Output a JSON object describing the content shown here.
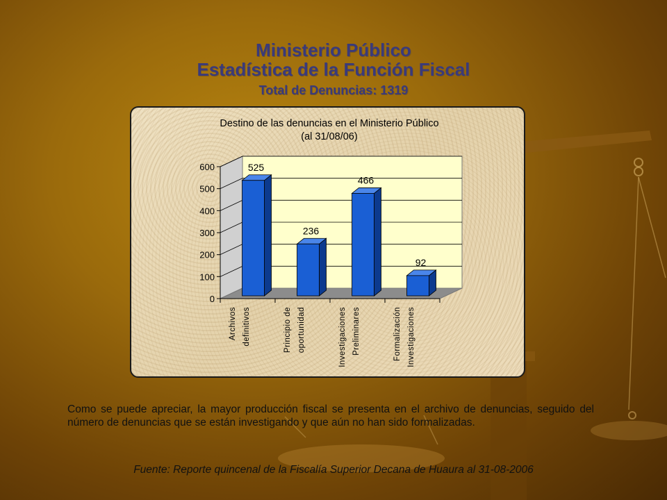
{
  "header": {
    "title_line1": "Ministerio Público",
    "title_line2": "Estadística de la Función Fiscal",
    "subtitle": "Total de Denuncias: 1319"
  },
  "chart_data": {
    "type": "bar",
    "title": "Destino de las denuncias en el Ministerio Público",
    "subtitle": "(al 31/08/06)",
    "categories": [
      [
        "Archivos",
        "definitivos"
      ],
      [
        "Principio de",
        "oportunidad"
      ],
      [
        "Investigaciones",
        "Preliminares"
      ],
      [
        "Formalización",
        "Investigaciones"
      ]
    ],
    "values": [
      525,
      236,
      466,
      92
    ],
    "ylim": [
      0,
      600
    ],
    "yticks": [
      0,
      100,
      200,
      300,
      400,
      500,
      600
    ],
    "grid": true,
    "style": "3d-columns",
    "colors": {
      "bar_front": "#1a5fd4",
      "bar_side": "#0c3a8e",
      "bar_top": "#4a86ea",
      "plot_background": "#ffffcc",
      "floor": "#8c8c8c"
    }
  },
  "body": {
    "paragraph": "Como se puede apreciar, la mayor producción fiscal se presenta en el archivo de denuncias, seguido del número de denuncias que se están investigando y que aún no han sido formalizadas."
  },
  "footer": {
    "source": "Fuente:  Reporte quincenal de la Fiscalía Superior Decana de Huaura al 31-08-2006"
  }
}
